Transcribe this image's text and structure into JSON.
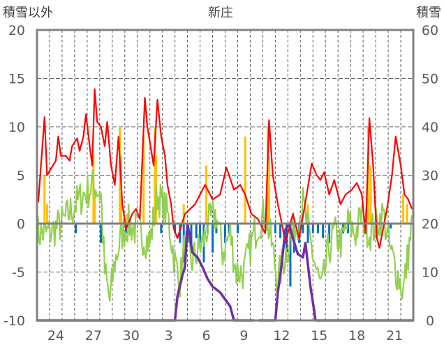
{
  "chart_data": {
    "type": "line",
    "title": "新庄",
    "ylabel_left": "積雪以外",
    "ylabel_right": "積雪",
    "ylim_left": [
      -10,
      20
    ],
    "ylim_right": [
      0,
      60
    ],
    "yticks_left": [
      "20",
      "15",
      "10",
      "5",
      "0",
      "-5",
      "-10"
    ],
    "yticks_right": [
      "60",
      "50",
      "40",
      "30",
      "20",
      "10",
      "0"
    ],
    "x_unit": "day index from start (30 days)",
    "xlim": [
      0,
      30
    ],
    "xticks": [
      {
        "day": 1,
        "label": "24"
      },
      {
        "day": 4,
        "label": "27"
      },
      {
        "day": 7,
        "label": "30"
      },
      {
        "day": 10,
        "label": "3"
      },
      {
        "day": 13,
        "label": "6"
      },
      {
        "day": 16,
        "label": "9"
      },
      {
        "day": 19,
        "label": "12"
      },
      {
        "day": 22,
        "label": "15"
      },
      {
        "day": 25,
        "label": "18"
      },
      {
        "day": 28,
        "label": "21"
      }
    ],
    "grid": true,
    "colors": {
      "red": "#ff0000",
      "green": "#92d050",
      "purple": "#7030a0",
      "orange": "#ffc000",
      "blue": "#0070c0",
      "frame": "#808080"
    },
    "series": [
      {
        "name": "red",
        "axis": "left",
        "points": [
          [
            0.1,
            2.2
          ],
          [
            0.6,
            11
          ],
          [
            0.8,
            5
          ],
          [
            1.5,
            6.5
          ],
          [
            1.7,
            9
          ],
          [
            1.9,
            7
          ],
          [
            2.3,
            7
          ],
          [
            2.6,
            6.5
          ],
          [
            2.8,
            8
          ],
          [
            3.2,
            8.8
          ],
          [
            3.4,
            7.5
          ],
          [
            3.7,
            9
          ],
          [
            3.9,
            11.3
          ],
          [
            4.2,
            8
          ],
          [
            4.4,
            6
          ],
          [
            4.6,
            13.9
          ],
          [
            4.8,
            10.5
          ],
          [
            5.1,
            10
          ],
          [
            5.4,
            8
          ],
          [
            5.6,
            10.5
          ],
          [
            5.9,
            6
          ],
          [
            6.2,
            4
          ],
          [
            6.5,
            9
          ],
          [
            6.8,
            2
          ],
          [
            7.1,
            -0.5
          ],
          [
            7.6,
            1
          ],
          [
            7.9,
            1.5
          ],
          [
            8.2,
            0.5
          ],
          [
            8.6,
            13
          ],
          [
            8.8,
            10
          ],
          [
            9.3,
            6
          ],
          [
            9.6,
            12.8
          ],
          [
            9.9,
            9
          ],
          [
            10.2,
            7
          ],
          [
            10.4,
            4
          ],
          [
            10.7,
            2
          ],
          [
            10.9,
            -0.5
          ],
          [
            11.2,
            -1.5
          ],
          [
            11.8,
            1
          ],
          [
            12.6,
            2
          ],
          [
            13.4,
            4
          ],
          [
            14.0,
            2.5
          ],
          [
            14.6,
            3
          ],
          [
            15.1,
            5.8
          ],
          [
            15.7,
            3.5
          ],
          [
            16.2,
            4
          ],
          [
            16.6,
            3
          ],
          [
            17.1,
            1
          ],
          [
            17.6,
            0.5
          ],
          [
            18.2,
            -1
          ],
          [
            18.5,
            10.7
          ],
          [
            18.8,
            5
          ],
          [
            19.2,
            2
          ],
          [
            19.6,
            -0.5
          ],
          [
            19.8,
            -2
          ],
          [
            20.4,
            1
          ],
          [
            20.9,
            -1.5
          ],
          [
            21.5,
            3
          ],
          [
            21.9,
            6.2
          ],
          [
            22.3,
            5
          ],
          [
            22.6,
            4.5
          ],
          [
            22.9,
            5.3
          ],
          [
            23.3,
            3
          ],
          [
            23.7,
            4.5
          ],
          [
            24.2,
            2
          ],
          [
            24.6,
            3
          ],
          [
            25.1,
            3.5
          ],
          [
            25.5,
            4.2
          ],
          [
            25.9,
            3
          ],
          [
            26.2,
            -1
          ],
          [
            26.5,
            10.9
          ],
          [
            26.8,
            6
          ],
          [
            27.1,
            -1.5
          ],
          [
            27.3,
            -2.5
          ],
          [
            27.9,
            1.5
          ],
          [
            28.3,
            5
          ],
          [
            28.6,
            9
          ],
          [
            29.0,
            6
          ],
          [
            29.3,
            3
          ],
          [
            29.6,
            2.5
          ],
          [
            29.9,
            1.5
          ]
        ]
      },
      {
        "name": "green",
        "axis": "left",
        "points": [
          [
            0,
            -1
          ],
          [
            0.9,
            -1
          ],
          [
            2,
            0
          ],
          [
            3.1,
            2
          ],
          [
            3.7,
            3
          ],
          [
            4.6,
            4
          ],
          [
            5.1,
            3
          ],
          [
            5.4,
            -5
          ],
          [
            5.8,
            -8
          ],
          [
            6.2,
            -4
          ],
          [
            6.8,
            -1
          ],
          [
            7.3,
            0
          ],
          [
            8.2,
            -1
          ],
          [
            9,
            -2
          ],
          [
            9.6,
            3
          ],
          [
            10.4,
            1
          ],
          [
            11,
            -4
          ],
          [
            11.4,
            -6
          ],
          [
            11.8,
            -2
          ],
          [
            12.3,
            -4
          ],
          [
            13.2,
            -2
          ],
          [
            13.7,
            0
          ],
          [
            14.3,
            1
          ],
          [
            14.8,
            -3
          ],
          [
            15.4,
            -1
          ],
          [
            15.9,
            -5
          ],
          [
            16.5,
            -5
          ],
          [
            17.1,
            -2
          ],
          [
            17.6,
            0
          ],
          [
            18.2,
            1
          ],
          [
            18.7,
            -2
          ],
          [
            19.2,
            -6
          ],
          [
            19.6,
            -4
          ],
          [
            20.1,
            -2
          ],
          [
            20.7,
            0
          ],
          [
            21.2,
            2
          ],
          [
            21.8,
            -2
          ],
          [
            22.3,
            -5
          ],
          [
            22.7,
            -7
          ],
          [
            23.2,
            -3
          ],
          [
            23.7,
            -1
          ],
          [
            24.3,
            -2
          ],
          [
            24.8,
            0
          ],
          [
            25.4,
            -1
          ],
          [
            25.9,
            1
          ],
          [
            26.5,
            -1
          ],
          [
            27.1,
            0
          ],
          [
            27.6,
            1
          ],
          [
            28.2,
            -3
          ],
          [
            28.7,
            -5
          ],
          [
            29.2,
            -7
          ],
          [
            29.6,
            -3
          ],
          [
            30,
            1
          ]
        ]
      },
      {
        "name": "purple",
        "axis": "right",
        "points": [
          [
            0,
            0
          ],
          [
            11.0,
            0
          ],
          [
            11.2,
            5
          ],
          [
            11.6,
            9.4
          ],
          [
            11.8,
            11
          ],
          [
            12.0,
            20
          ],
          [
            12.4,
            14
          ],
          [
            12.8,
            13
          ],
          [
            13.2,
            11
          ],
          [
            13.6,
            8.6
          ],
          [
            14.0,
            7
          ],
          [
            14.6,
            5.8
          ],
          [
            15.4,
            2.9
          ],
          [
            15.7,
            0
          ],
          [
            17.3,
            0
          ],
          null,
          [
            17.7,
            0
          ],
          [
            19.0,
            0
          ],
          [
            19.2,
            5.8
          ],
          [
            19.5,
            11.5
          ],
          [
            19.8,
            18.7
          ],
          [
            20.1,
            20
          ],
          [
            20.4,
            17
          ],
          [
            20.8,
            13.7
          ],
          [
            21.2,
            13
          ],
          [
            21.4,
            16
          ],
          [
            21.8,
            7
          ],
          [
            22.1,
            2
          ],
          [
            22.2,
            0
          ],
          [
            30,
            0
          ]
        ]
      }
    ],
    "bars": [
      {
        "name": "orange",
        "axis": "left",
        "points": [
          [
            0.6,
            5
          ],
          [
            0.8,
            2
          ],
          [
            4.5,
            7
          ],
          [
            4.6,
            3
          ],
          [
            6.6,
            10
          ],
          [
            6.7,
            7
          ],
          [
            7.2,
            1
          ],
          [
            8.5,
            9
          ],
          [
            9.4,
            10
          ],
          [
            9.5,
            7
          ],
          [
            11.7,
            2
          ],
          [
            13.5,
            6
          ],
          [
            16.6,
            9
          ],
          [
            18.4,
            10
          ],
          [
            18.5,
            7
          ],
          [
            21.6,
            2
          ],
          [
            26.4,
            10
          ],
          [
            26.6,
            6
          ],
          [
            29.2,
            3
          ],
          [
            29.5,
            2
          ]
        ]
      },
      {
        "name": "blue",
        "axis": "left",
        "points": [
          [
            3.1,
            -1
          ],
          [
            5.1,
            -2
          ],
          [
            7.1,
            -1
          ],
          [
            9.9,
            -1
          ],
          [
            11.0,
            -1
          ],
          [
            11.4,
            -2
          ],
          [
            11.7,
            -4
          ],
          [
            12.0,
            -2
          ],
          [
            12.3,
            -3
          ],
          [
            12.7,
            -1.5
          ],
          [
            13.0,
            -2
          ],
          [
            13.3,
            -4
          ],
          [
            13.6,
            -1
          ],
          [
            14.0,
            -3
          ],
          [
            14.3,
            -1
          ],
          [
            15.0,
            -2
          ],
          [
            15.3,
            -1
          ],
          [
            16.0,
            -1
          ],
          [
            19.0,
            -1
          ],
          [
            19.4,
            -1.5
          ],
          [
            19.9,
            -3
          ],
          [
            20.2,
            -6.5
          ],
          [
            20.5,
            -3
          ],
          [
            20.9,
            -2
          ],
          [
            21.2,
            -1
          ],
          [
            21.6,
            -2
          ],
          [
            22.0,
            -1
          ],
          [
            22.4,
            -1
          ],
          [
            22.8,
            -1.5
          ],
          [
            23.3,
            -2
          ],
          [
            24.4,
            -1
          ],
          [
            24.8,
            -1
          ],
          [
            28.2,
            -0.5
          ]
        ]
      }
    ]
  }
}
